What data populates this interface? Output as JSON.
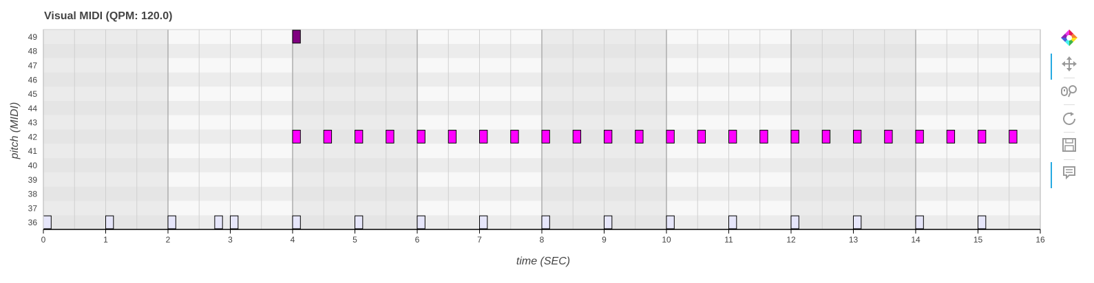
{
  "chart_data": {
    "type": "piano-roll",
    "title": "Visual MIDI (QPM: 120.0)",
    "xlabel": "time (SEC)",
    "ylabel": "pitch (MIDI)",
    "xlim": [
      0,
      16
    ],
    "ylim": [
      35.5,
      49.5
    ],
    "x_ticks": [
      "0",
      "1",
      "2",
      "3",
      "4",
      "5",
      "6",
      "7",
      "8",
      "9",
      "10",
      "11",
      "12",
      "13",
      "14",
      "15",
      "16"
    ],
    "y_ticks": [
      "36",
      "37",
      "38",
      "39",
      "40",
      "41",
      "42",
      "43",
      "44",
      "45",
      "46",
      "47",
      "48",
      "49"
    ],
    "beat_seconds": 0.5,
    "bar_seconds": 2,
    "shaded_bars": [
      [
        0,
        2
      ],
      [
        4,
        6
      ],
      [
        8,
        10
      ],
      [
        12,
        14
      ]
    ],
    "colors": {
      "note_high": "#800080",
      "note_mid": "#ff00ff",
      "note_low": "#e6e6fa",
      "note_edge": "#000000",
      "row_dark": "#ececec",
      "row_light": "#f8f8f8",
      "bar_shade": "#e0e0e0"
    },
    "series": [
      {
        "pitch": 49,
        "color": "#800080",
        "duration": 0.125,
        "starts": [
          4.0
        ]
      },
      {
        "pitch": 42,
        "color": "#ff00ff",
        "duration": 0.125,
        "starts": [
          4.0,
          4.5,
          5.0,
          5.5,
          6.0,
          6.5,
          7.0,
          7.5,
          8.0,
          8.5,
          9.0,
          9.5,
          10.0,
          10.5,
          11.0,
          11.5,
          12.0,
          12.5,
          13.0,
          13.5,
          14.0,
          14.5,
          15.0,
          15.5
        ]
      },
      {
        "pitch": 36,
        "color": "#e6e6fa",
        "duration": 0.125,
        "starts": [
          0.0,
          1.0,
          2.0,
          2.75,
          3.0,
          4.0,
          5.0,
          6.0,
          7.0,
          8.0,
          9.0,
          10.0,
          11.0,
          12.0,
          13.0,
          14.0,
          15.0
        ]
      }
    ]
  },
  "toolbar": {
    "tools": [
      {
        "name": "bokeh-logo-icon",
        "interactable": false
      },
      {
        "name": "pan-tool-icon",
        "interactable": true,
        "active": true
      },
      {
        "name": "wheel-zoom-tool-icon",
        "interactable": true,
        "active": false
      },
      {
        "name": "reset-tool-icon",
        "interactable": true,
        "active": false
      },
      {
        "name": "save-tool-icon",
        "interactable": true,
        "active": false
      },
      {
        "name": "hover-tool-icon",
        "interactable": true,
        "active": true
      }
    ]
  }
}
